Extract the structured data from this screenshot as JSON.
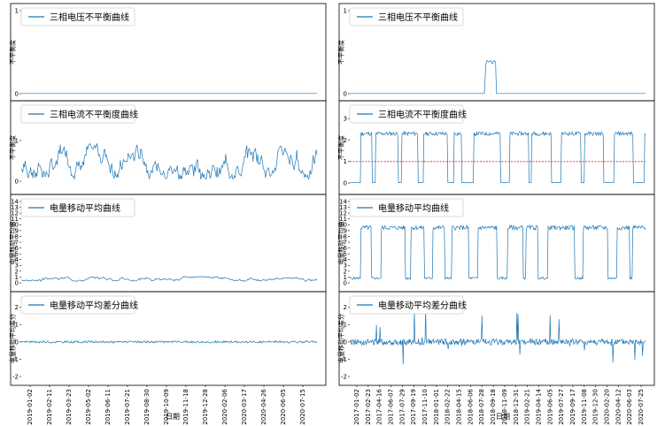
{
  "chart_data": [
    {
      "type": "line",
      "panel": "left-1",
      "legend": "三相电压不平衡曲线",
      "ylabel": "不平衡度",
      "ylim": [
        0,
        1
      ],
      "yticks": [
        {
          "v": 0,
          "label": "0"
        },
        {
          "v": 1,
          "label": "1"
        }
      ],
      "series": [
        {
          "name": "三相电压不平衡曲线",
          "segments": [
            [
              0,
              0.002
            ],
            [
              100,
              0.002
            ]
          ]
        }
      ],
      "color": "#1f77b4"
    },
    {
      "type": "line",
      "panel": "right-1",
      "legend": "三相电压不平衡曲线",
      "ylabel": "不平衡度",
      "ylim": [
        0,
        1
      ],
      "yticks": [
        {
          "v": 0,
          "label": "0"
        },
        {
          "v": 1,
          "label": "1"
        }
      ],
      "series": [
        {
          "name": "三相电压不平衡曲线",
          "segments": [
            [
              0,
              0.002
            ],
            [
              45.5,
              0.002
            ],
            [
              46.0,
              0.35
            ],
            [
              46.4,
              0.4
            ],
            [
              47.0,
              0.38
            ],
            [
              47.6,
              0.4
            ],
            [
              48.2,
              0.36
            ],
            [
              48.8,
              0.4
            ],
            [
              49.3,
              0.38
            ],
            [
              49.6,
              0.002
            ],
            [
              100,
              0.002
            ]
          ]
        }
      ],
      "color": "#1f77b4"
    },
    {
      "type": "line",
      "panel": "left-2",
      "legend": "三相电流不平衡度曲线",
      "ylabel": "不平衡度",
      "ylim": [
        -0.15,
        1.8
      ],
      "yticks": [
        {
          "v": 0,
          "label": "0"
        },
        {
          "v": 1,
          "label": "1"
        }
      ],
      "series": [
        {
          "name": "三相电流不平衡度曲线",
          "generator": "noise",
          "seed": 7,
          "base": 0.35,
          "amp": 0.55,
          "points": 380
        }
      ],
      "color": "#1f77b4"
    },
    {
      "type": "line",
      "panel": "right-2",
      "legend": "三相电流不平衡度曲线",
      "ylabel": "不平衡度",
      "ylim": [
        -0.2,
        3.5
      ],
      "yticks": [
        {
          "v": 0,
          "label": "0"
        },
        {
          "v": 1,
          "label": "1"
        },
        {
          "v": 2,
          "label": "2"
        },
        {
          "v": 3,
          "label": "3"
        }
      ],
      "threshold": 1,
      "series": [
        {
          "name": "三相电流不平衡度曲线",
          "generator": "steps",
          "seed": 11,
          "low": 0.02,
          "high": 2.3,
          "points": 420
        }
      ],
      "color": "#1f77b4"
    },
    {
      "type": "line",
      "panel": "left-3",
      "legend": "电量移动平均曲线",
      "ylabel": "电量移动平均值",
      "ylim": [
        -0.3,
        14
      ],
      "yticks": [
        {
          "v": 0,
          "label": "0"
        },
        {
          "v": 1,
          "label": "1"
        },
        {
          "v": 2,
          "label": "2"
        },
        {
          "v": 3,
          "label": "3"
        },
        {
          "v": 4,
          "label": "4"
        },
        {
          "v": 5,
          "label": "5"
        },
        {
          "v": 6,
          "label": "6"
        },
        {
          "v": 7,
          "label": "7"
        },
        {
          "v": 8,
          "label": "8"
        },
        {
          "v": 9,
          "label": "9"
        },
        {
          "v": 10,
          "label": "10"
        },
        {
          "v": 11,
          "label": "11"
        },
        {
          "v": 12,
          "label": "12"
        },
        {
          "v": 13,
          "label": "13"
        },
        {
          "v": 14,
          "label": "14"
        }
      ],
      "series": [
        {
          "name": "电量移动平均曲线",
          "generator": "noise",
          "seed": 3,
          "base": 0.55,
          "amp": 0.5,
          "points": 380
        }
      ],
      "color": "#1f77b4"
    },
    {
      "type": "line",
      "panel": "right-3",
      "legend": "电量移动平均曲线",
      "ylabel": "电量移动平均值",
      "ylim": [
        -0.3,
        14
      ],
      "yticks": [
        {
          "v": 0,
          "label": "0"
        },
        {
          "v": 1,
          "label": "1"
        },
        {
          "v": 2,
          "label": "2"
        },
        {
          "v": 3,
          "label": "3"
        },
        {
          "v": 4,
          "label": "4"
        },
        {
          "v": 5,
          "label": "5"
        },
        {
          "v": 6,
          "label": "6"
        },
        {
          "v": 7,
          "label": "7"
        },
        {
          "v": 8,
          "label": "8"
        },
        {
          "v": 9,
          "label": "9"
        },
        {
          "v": 10,
          "label": "10"
        },
        {
          "v": 11,
          "label": "11"
        },
        {
          "v": 12,
          "label": "12"
        },
        {
          "v": 13,
          "label": "13"
        },
        {
          "v": 14,
          "label": "14"
        }
      ],
      "series": [
        {
          "name": "电量移动平均曲线",
          "generator": "steps",
          "seed": 5,
          "low": 0.8,
          "high": 9.5,
          "points": 420
        }
      ],
      "color": "#1f77b4"
    },
    {
      "type": "line",
      "panel": "left-4",
      "legend": "电量移动平均差分曲线",
      "ylabel": "电量移动平均差分",
      "ylim": [
        -2.1,
        2.5
      ],
      "yticks": [
        {
          "v": -2,
          "label": "-2"
        },
        {
          "v": -1,
          "label": "-1"
        },
        {
          "v": 0,
          "label": "0"
        },
        {
          "v": 1,
          "label": "1"
        },
        {
          "v": 2,
          "label": "2"
        }
      ],
      "series": [
        {
          "name": "电量移动平均差分曲线",
          "generator": "diff",
          "seed": 9,
          "amp": 0.12,
          "spikes": 0.08,
          "points": 380
        }
      ],
      "color": "#1f77b4"
    },
    {
      "type": "line",
      "panel": "right-4",
      "legend": "电量移动平均差分曲线",
      "ylabel": "电量移动平均差分",
      "ylim": [
        -2.1,
        2.5
      ],
      "yticks": [
        {
          "v": -2,
          "label": "-2"
        },
        {
          "v": -1,
          "label": "-1"
        },
        {
          "v": 0,
          "label": "0"
        },
        {
          "v": 1,
          "label": "1"
        },
        {
          "v": 2,
          "label": "2"
        }
      ],
      "series": [
        {
          "name": "电量移动平均差分曲线",
          "generator": "diff",
          "seed": 13,
          "amp": 0.35,
          "spikes": 1.9,
          "points": 500
        }
      ],
      "color": "#1f77b4"
    }
  ],
  "x_axis": {
    "label": "日期",
    "left_ticks": [
      "2019-01-02",
      "2019-02-11",
      "2019-03-23",
      "2019-05-02",
      "2019-06-11",
      "2019-07-21",
      "2019-08-30",
      "2019-10-09",
      "2019-11-18",
      "2019-12-28",
      "2020-02-06",
      "2020-03-17",
      "2020-04-26",
      "2020-06-05",
      "2020-07-15"
    ],
    "right_ticks": [
      "2017-01-02",
      "2017-02-23",
      "2017-04-16",
      "2017-06-07",
      "2017-07-29",
      "2017-09-19",
      "2017-11-10",
      "2018-01-01",
      "2018-02-22",
      "2018-04-15",
      "2018-06-06",
      "2018-07-28",
      "2018-09-18",
      "2018-11-09",
      "2018-12-31",
      "2019-02-21",
      "2019-04-14",
      "2019-06-05",
      "2019-07-27",
      "2019-09-17",
      "2019-11-08",
      "2019-12-30",
      "2020-02-20",
      "2020-04-12",
      "2020-06-03",
      "2020-07-25"
    ]
  },
  "colors": {
    "line": "#1f77b4",
    "threshold": "#e6241f",
    "frame": "#000000"
  }
}
